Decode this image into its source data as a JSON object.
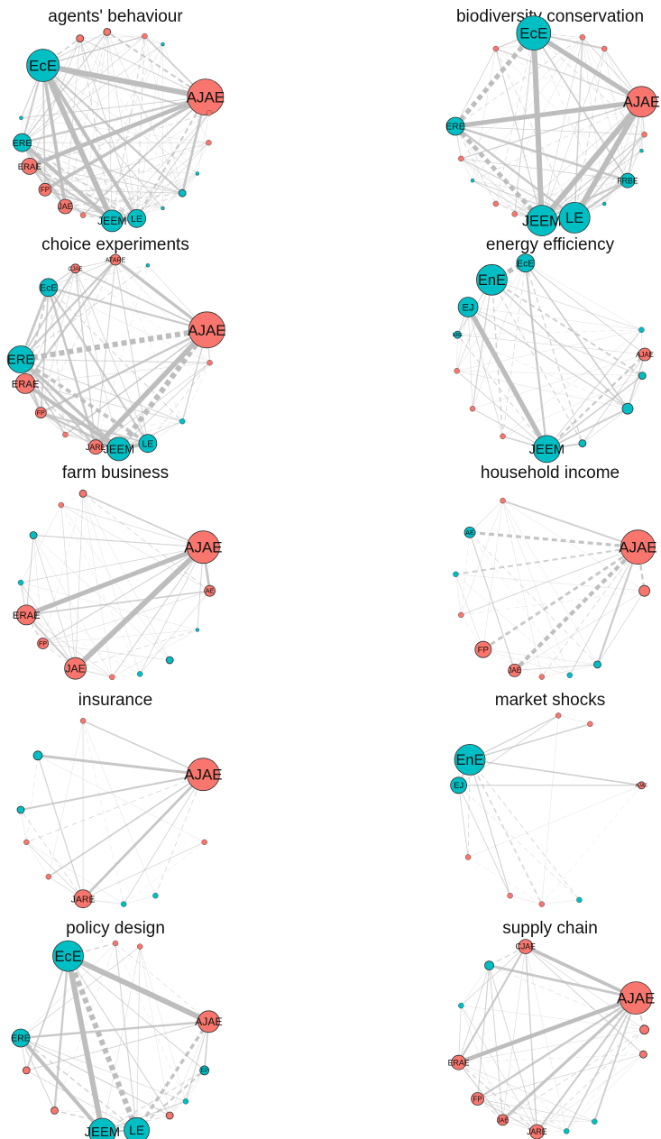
{
  "colors": {
    "red": "#F8766D",
    "teal": "#00BFC4",
    "edge": "#bdbdbd",
    "node_stroke": "#333333"
  },
  "panels": [
    {
      "title": "agents' behaviour",
      "nodes": [
        {
          "label": "EcE",
          "color": "teal",
          "size": 18,
          "angle": -140
        },
        {
          "label": "AJAE",
          "color": "red",
          "size": 20,
          "angle": -18
        },
        {
          "label": "ERE",
          "color": "teal",
          "size": 10,
          "angle": -190
        },
        {
          "label": "ERAE",
          "color": "red",
          "size": 9,
          "angle": -205
        },
        {
          "label": "FP",
          "color": "red",
          "size": 7,
          "angle": -222
        },
        {
          "label": "JAE",
          "color": "red",
          "size": 8,
          "angle": -238
        },
        {
          "label": "JEEM",
          "color": "teal",
          "size": 12,
          "angle": -268
        },
        {
          "label": "LE",
          "color": "teal",
          "size": 10,
          "angle": -283
        },
        {
          "label": "",
          "color": "red",
          "size": 4,
          "angle": -112
        },
        {
          "label": "",
          "color": "red",
          "size": 4,
          "angle": -95
        },
        {
          "label": "",
          "color": "red",
          "size": 3,
          "angle": -72
        },
        {
          "label": "",
          "color": "teal",
          "size": 2,
          "angle": -60
        },
        {
          "label": "",
          "color": "red",
          "size": 3,
          "angle": -8
        },
        {
          "label": "",
          "color": "red",
          "size": 3,
          "angle": 10
        },
        {
          "label": "",
          "color": "teal",
          "size": 2,
          "angle": 30
        },
        {
          "label": "",
          "color": "teal",
          "size": 4,
          "angle": 45
        },
        {
          "label": "",
          "color": "teal",
          "size": 2,
          "angle": 60
        },
        {
          "label": "",
          "color": "red",
          "size": 3,
          "angle": -250
        },
        {
          "label": "",
          "color": "teal",
          "size": 2,
          "angle": -175
        }
      ]
    },
    {
      "title": "biodiversity conservation",
      "nodes": [
        {
          "label": "EcE",
          "color": "teal",
          "size": 19,
          "angle": -100
        },
        {
          "label": "AJAE",
          "color": "red",
          "size": 17,
          "angle": -15
        },
        {
          "label": "ERE",
          "color": "teal",
          "size": 10,
          "angle": -180
        },
        {
          "label": "JEEM",
          "color": "teal",
          "size": 17,
          "angle": -265
        },
        {
          "label": "LE",
          "color": "teal",
          "size": 17,
          "angle": -285
        },
        {
          "label": "FRBE",
          "color": "teal",
          "size": 8,
          "angle": 35
        },
        {
          "label": "",
          "color": "red",
          "size": 3,
          "angle": -70
        },
        {
          "label": "",
          "color": "red",
          "size": 3,
          "angle": -55
        },
        {
          "label": "",
          "color": "red",
          "size": 3,
          "angle": -125
        },
        {
          "label": "",
          "color": "red",
          "size": 3,
          "angle": 5
        },
        {
          "label": "",
          "color": "teal",
          "size": 2,
          "angle": 15
        },
        {
          "label": "",
          "color": "red",
          "size": 3,
          "angle": -200
        },
        {
          "label": "",
          "color": "teal",
          "size": 2,
          "angle": -215
        },
        {
          "label": "",
          "color": "red",
          "size": 3,
          "angle": -235
        },
        {
          "label": "",
          "color": "red",
          "size": 3,
          "angle": -248
        },
        {
          "label": "",
          "color": "teal",
          "size": 2,
          "angle": 55
        }
      ]
    },
    {
      "title": "choice experiments",
      "nodes": [
        {
          "label": "EcE",
          "color": "teal",
          "size": 10,
          "angle": -135
        },
        {
          "label": "AJAE",
          "color": "red",
          "size": 20,
          "angle": -15
        },
        {
          "label": "ERE",
          "color": "teal",
          "size": 15,
          "angle": -183
        },
        {
          "label": "ERAE",
          "color": "red",
          "size": 11,
          "angle": -198
        },
        {
          "label": "FP",
          "color": "red",
          "size": 6,
          "angle": -218
        },
        {
          "label": "JARE",
          "color": "red",
          "size": 8,
          "angle": -258
        },
        {
          "label": "JEEM",
          "color": "teal",
          "size": 13,
          "angle": -272
        },
        {
          "label": "LE",
          "color": "teal",
          "size": 10,
          "angle": -290
        },
        {
          "label": "CJAE",
          "color": "red",
          "size": 5,
          "angle": -115
        },
        {
          "label": "ATARE",
          "color": "red",
          "size": 6,
          "angle": -90
        },
        {
          "label": "",
          "color": "red",
          "size": 3,
          "angle": 5
        },
        {
          "label": "",
          "color": "teal",
          "size": 3,
          "angle": 45
        },
        {
          "label": "",
          "color": "red",
          "size": 3,
          "angle": -238
        },
        {
          "label": "",
          "color": "teal",
          "size": 2,
          "angle": -70
        }
      ]
    },
    {
      "title": "energy efficiency",
      "nodes": [
        {
          "label": "EnE",
          "color": "teal",
          "size": 17,
          "angle": -128
        },
        {
          "label": "EcE",
          "color": "teal",
          "size": 10,
          "angle": -105
        },
        {
          "label": "EJ",
          "color": "teal",
          "size": 11,
          "angle": -150
        },
        {
          "label": "JEEM",
          "color": "teal",
          "size": 15,
          "angle": -268
        },
        {
          "label": "AJAE",
          "color": "red",
          "size": 7,
          "angle": 0
        },
        {
          "label": "",
          "color": "teal",
          "size": 3,
          "angle": -15
        },
        {
          "label": "",
          "color": "teal",
          "size": 4,
          "angle": 13
        },
        {
          "label": "",
          "color": "teal",
          "size": 6,
          "angle": 35
        },
        {
          "label": "",
          "color": "teal",
          "size": 4,
          "angle": -290
        },
        {
          "label": "ERE",
          "color": "teal",
          "size": 4,
          "angle": -168
        },
        {
          "label": "",
          "color": "red",
          "size": 3,
          "angle": -190
        },
        {
          "label": "",
          "color": "red",
          "size": 3,
          "angle": -215
        },
        {
          "label": "",
          "color": "red",
          "size": 3,
          "angle": -240
        }
      ]
    },
    {
      "title": "farm business",
      "nodes": [
        {
          "label": "AJAE",
          "color": "red",
          "size": 18,
          "angle": -22
        },
        {
          "label": "AE",
          "color": "red",
          "size": 6,
          "angle": 5
        },
        {
          "label": "ERAE",
          "color": "red",
          "size": 11,
          "angle": -200
        },
        {
          "label": "FP",
          "color": "red",
          "size": 6,
          "angle": -220
        },
        {
          "label": "JAE",
          "color": "red",
          "size": 12,
          "angle": -245
        },
        {
          "label": "",
          "color": "red",
          "size": 4,
          "angle": -110
        },
        {
          "label": "",
          "color": "red",
          "size": 3,
          "angle": -125
        },
        {
          "label": "",
          "color": "teal",
          "size": 4,
          "angle": -150
        },
        {
          "label": "",
          "color": "teal",
          "size": 3,
          "angle": -180
        },
        {
          "label": "",
          "color": "red",
          "size": 3,
          "angle": -268
        },
        {
          "label": "",
          "color": "teal",
          "size": 3,
          "angle": -285
        },
        {
          "label": "",
          "color": "teal",
          "size": 4,
          "angle": -305
        },
        {
          "label": "",
          "color": "teal",
          "size": 2,
          "angle": 30
        }
      ]
    },
    {
      "title": "household income",
      "nodes": [
        {
          "label": "AJAE",
          "color": "red",
          "size": 19,
          "angle": -22
        },
        {
          "label": "",
          "color": "red",
          "size": 6,
          "angle": 5
        },
        {
          "label": "FP",
          "color": "red",
          "size": 9,
          "angle": -225
        },
        {
          "label": "JAE",
          "color": "red",
          "size": 7,
          "angle": -248
        },
        {
          "label": "AE",
          "color": "teal",
          "size": 6,
          "angle": -148
        },
        {
          "label": "",
          "color": "red",
          "size": 3,
          "angle": -120
        },
        {
          "label": "",
          "color": "teal",
          "size": 3,
          "angle": -175
        },
        {
          "label": "",
          "color": "red",
          "size": 3,
          "angle": -200
        },
        {
          "label": "",
          "color": "red",
          "size": 3,
          "angle": -265
        },
        {
          "label": "",
          "color": "teal",
          "size": 3,
          "angle": -282
        },
        {
          "label": "",
          "color": "teal",
          "size": 4,
          "angle": -300
        }
      ]
    },
    {
      "title": "insurance",
      "nodes": [
        {
          "label": "AJAE",
          "color": "red",
          "size": 18,
          "angle": -22
        },
        {
          "label": "JARE",
          "color": "red",
          "size": 10,
          "angle": -250
        },
        {
          "label": "",
          "color": "teal",
          "size": 5,
          "angle": -145
        },
        {
          "label": "",
          "color": "teal",
          "size": 4,
          "angle": -180
        },
        {
          "label": "",
          "color": "red",
          "size": 3,
          "angle": -110
        },
        {
          "label": "",
          "color": "red",
          "size": 3,
          "angle": -200
        },
        {
          "label": "",
          "color": "red",
          "size": 3,
          "angle": -225
        },
        {
          "label": "",
          "color": "teal",
          "size": 3,
          "angle": -275
        },
        {
          "label": "",
          "color": "teal",
          "size": 3,
          "angle": -295
        },
        {
          "label": "",
          "color": "red",
          "size": 3,
          "angle": 20
        }
      ]
    },
    {
      "title": "market shocks",
      "nodes": [
        {
          "label": "EnE",
          "color": "teal",
          "size": 17,
          "angle": -148
        },
        {
          "label": "EJ",
          "color": "teal",
          "size": 9,
          "angle": -165
        },
        {
          "label": "AJAE",
          "color": "red",
          "size": 4,
          "angle": -15
        },
        {
          "label": "",
          "color": "red",
          "size": 3,
          "angle": -85
        },
        {
          "label": "",
          "color": "red",
          "size": 3,
          "angle": -65
        },
        {
          "label": "",
          "color": "red",
          "size": 3,
          "angle": -245
        },
        {
          "label": "",
          "color": "red",
          "size": 3,
          "angle": -265
        },
        {
          "label": "",
          "color": "teal",
          "size": 3,
          "angle": -288
        },
        {
          "label": "",
          "color": "red",
          "size": 3,
          "angle": -210
        }
      ]
    },
    {
      "title": "policy design",
      "nodes": [
        {
          "label": "EcE",
          "color": "teal",
          "size": 17,
          "angle": -120
        },
        {
          "label": "AJAE",
          "color": "red",
          "size": 12,
          "angle": -10
        },
        {
          "label": "ERE",
          "color": "teal",
          "size": 10,
          "angle": -180
        },
        {
          "label": "JEEM",
          "color": "teal",
          "size": 15,
          "angle": -262
        },
        {
          "label": "LE",
          "color": "teal",
          "size": 14,
          "angle": -283
        },
        {
          "label": "EP",
          "color": "teal",
          "size": 5,
          "angle": 20
        },
        {
          "label": "",
          "color": "teal",
          "size": 3,
          "angle": 42
        },
        {
          "label": "",
          "color": "red",
          "size": 4,
          "angle": 55
        },
        {
          "label": "",
          "color": "red",
          "size": 4,
          "angle": -230
        },
        {
          "label": "",
          "color": "red",
          "size": 4,
          "angle": -200
        },
        {
          "label": "",
          "color": "red",
          "size": 3,
          "angle": -90
        },
        {
          "label": "",
          "color": "red",
          "size": 3,
          "angle": -75
        }
      ]
    },
    {
      "title": "supply chain",
      "nodes": [
        {
          "label": "AJAE",
          "color": "red",
          "size": 18,
          "angle": -25
        },
        {
          "label": "CJAE",
          "color": "red",
          "size": 8,
          "angle": -105
        },
        {
          "label": "ERAE",
          "color": "red",
          "size": 8,
          "angle": -195
        },
        {
          "label": "FP",
          "color": "red",
          "size": 7,
          "angle": -220
        },
        {
          "label": "JAE",
          "color": "red",
          "size": 6,
          "angle": -240
        },
        {
          "label": "JARE",
          "color": "red",
          "size": 8,
          "angle": -262
        },
        {
          "label": "",
          "color": "red",
          "size": 5,
          "angle": -5
        },
        {
          "label": "",
          "color": "red",
          "size": 4,
          "angle": 10
        },
        {
          "label": "",
          "color": "teal",
          "size": 5,
          "angle": -130
        },
        {
          "label": "",
          "color": "teal",
          "size": 3,
          "angle": -280
        },
        {
          "label": "",
          "color": "teal",
          "size": 3,
          "angle": -298
        },
        {
          "label": "",
          "color": "teal",
          "size": 3,
          "angle": -160
        }
      ]
    }
  ]
}
